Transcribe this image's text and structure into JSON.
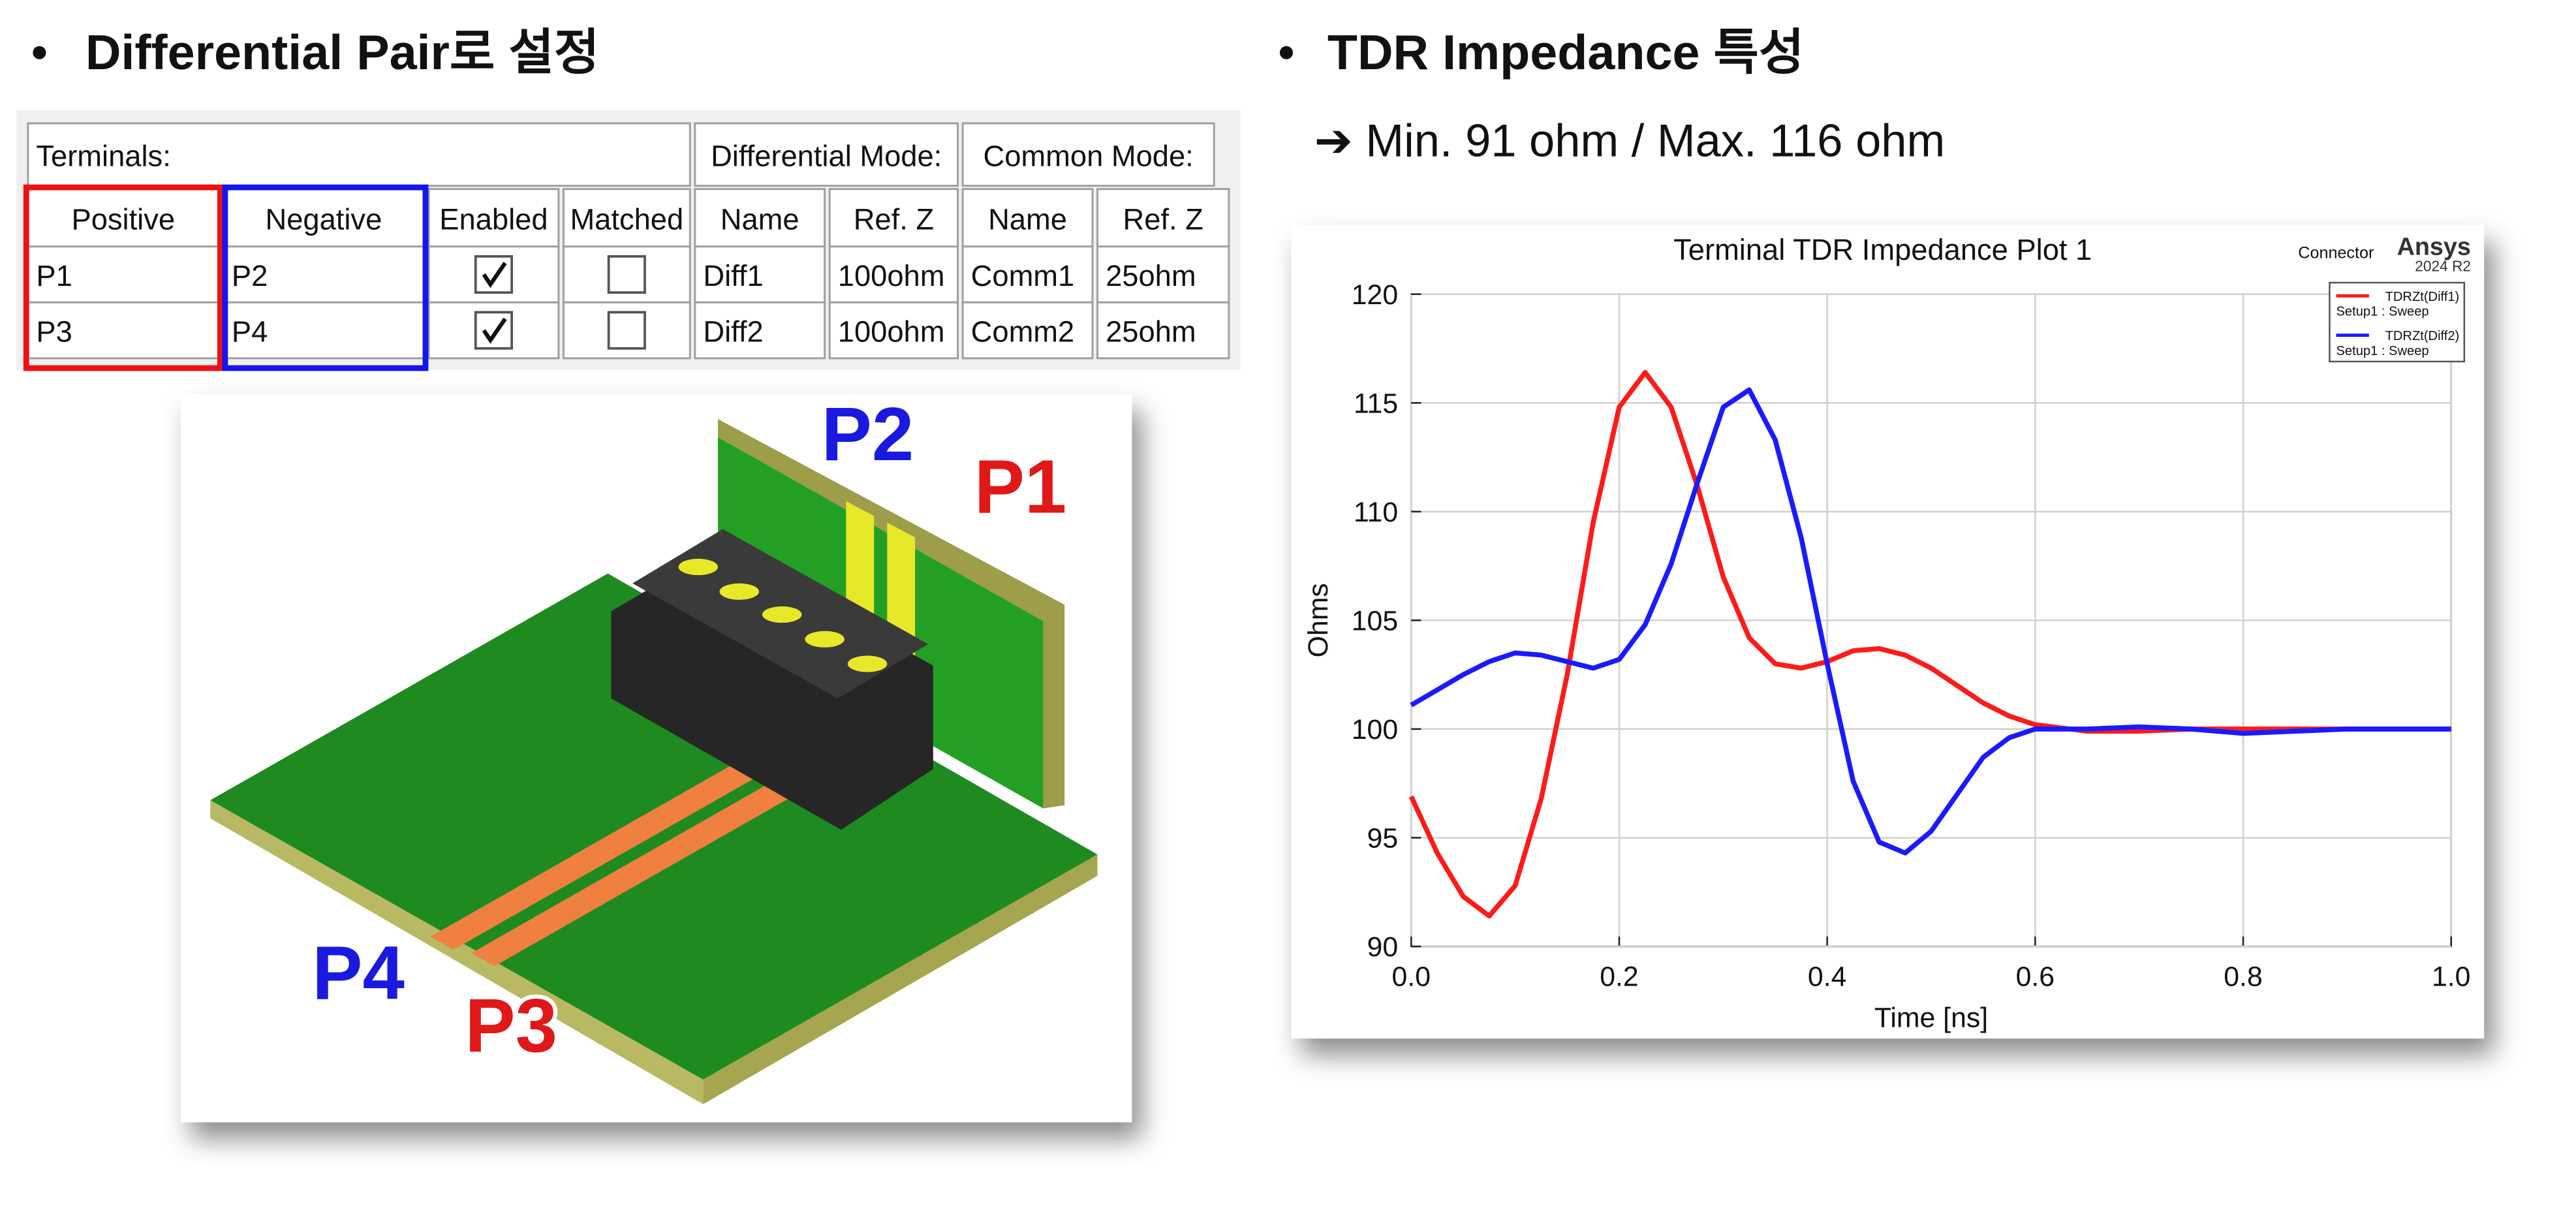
{
  "left": {
    "title": "Differential Pair로 설정"
  },
  "table": {
    "group_headers": [
      "Terminals:",
      "Differential Mode:",
      "Common Mode:"
    ],
    "columns": [
      "Positive",
      "Negative",
      "Enabled",
      "Matched",
      "Name",
      "Ref. Z",
      "Name",
      "Ref. Z"
    ],
    "rows": [
      {
        "positive": "P1",
        "negative": "P2",
        "enabled": true,
        "matched": false,
        "diff_name": "Diff1",
        "diff_ref_z": "100ohm",
        "comm_name": "Comm1",
        "comm_ref_z": "25ohm"
      },
      {
        "positive": "P3",
        "negative": "P4",
        "enabled": true,
        "matched": false,
        "diff_name": "Diff2",
        "diff_ref_z": "100ohm",
        "comm_name": "Comm2",
        "comm_ref_z": "25ohm"
      }
    ]
  },
  "image_labels": [
    {
      "text": "P2",
      "color": "#1a1adf"
    },
    {
      "text": "P1",
      "color": "#e01818"
    },
    {
      "text": "P4",
      "color": "#1a1adf"
    },
    {
      "text": "P3",
      "color": "#e01818"
    }
  ],
  "right": {
    "title": "TDR Impedance 특성",
    "summary": "➔ Min. 91 ohm / Max. 116 ohm"
  },
  "chart_data": {
    "type": "line",
    "title": "Terminal TDR Impedance Plot 1",
    "brand": "Ansys",
    "brand_version": "2024 R2",
    "project": "Connector",
    "x_label": "Time [ns]",
    "y_label": "Ohms",
    "x": [
      0,
      0.025,
      0.05,
      0.075,
      0.1,
      0.125,
      0.15,
      0.175,
      0.2,
      0.225,
      0.25,
      0.275,
      0.3,
      0.325,
      0.35,
      0.375,
      0.4,
      0.425,
      0.45,
      0.475,
      0.5,
      0.525,
      0.55,
      0.575,
      0.6,
      0.65,
      0.7,
      0.75,
      0.8,
      0.85,
      0.9,
      0.95,
      1.0
    ],
    "series": [
      {
        "name": "TDRZt(Diff1)",
        "setup": "Setup1 : Sweep",
        "color": "#ff1a1a",
        "values": [
          96.9,
          94.3,
          92.3,
          91.4,
          92.8,
          96.8,
          102.5,
          109.5,
          114.8,
          116.4,
          114.8,
          111.2,
          107.0,
          104.2,
          103.0,
          102.8,
          103.1,
          103.6,
          103.7,
          103.4,
          102.8,
          102.0,
          101.2,
          100.6,
          100.2,
          99.9,
          99.9,
          100.0,
          100.0,
          100.0,
          100.0,
          100.0,
          100.0
        ]
      },
      {
        "name": "TDRZt(Diff2)",
        "setup": "Setup1 : Sweep",
        "color": "#1a1aff",
        "values": [
          101.1,
          101.8,
          102.5,
          103.1,
          103.5,
          103.4,
          103.1,
          102.8,
          103.2,
          104.8,
          107.6,
          111.3,
          114.8,
          115.6,
          113.3,
          108.8,
          103.0,
          97.6,
          94.8,
          94.3,
          95.3,
          97.0,
          98.7,
          99.6,
          100.0,
          100.0,
          100.1,
          100.0,
          99.8,
          99.9,
          100.0,
          100.0,
          100.0
        ]
      }
    ],
    "xlim": [
      0,
      1
    ],
    "xticks": [
      {
        "value": 0,
        "label": "0.0"
      },
      0.2,
      0.4,
      0.6,
      0.8,
      {
        "value": 1,
        "label": "1.0"
      }
    ],
    "ylim": [
      90,
      120
    ],
    "yticks": [
      90,
      95,
      100,
      105,
      110,
      115,
      120
    ],
    "grid": true,
    "legend": "upper right"
  }
}
